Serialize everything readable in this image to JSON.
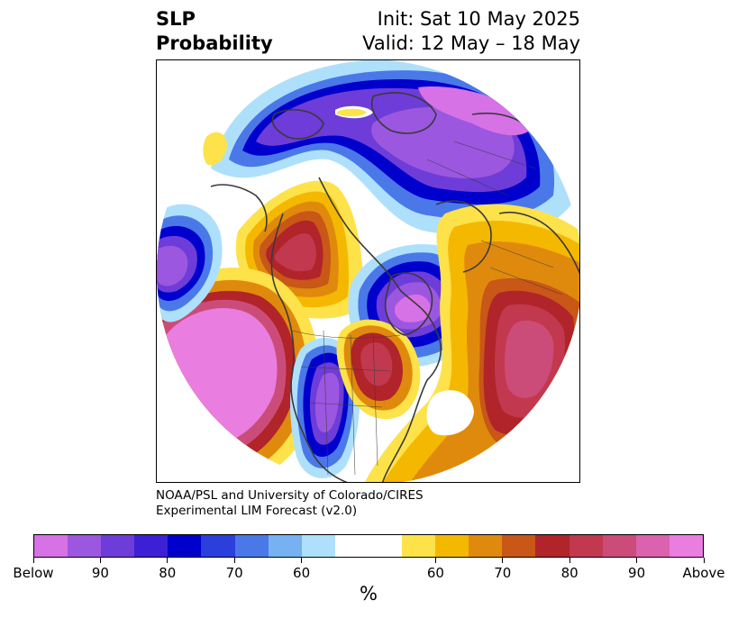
{
  "header": {
    "title_line1": "SLP",
    "title_line2": "Probability",
    "init_text": "Init: Sat 10 May 2025",
    "valid_text": "Valid: 12 May – 18 May"
  },
  "map": {
    "projection": "polar stereographic, Northern Hemisphere (Pacific / North America / Atlantic sector)",
    "variable": "SLP",
    "features": [
      {
        "label": "positive anomaly probability maximum",
        "region": "northeast Pacific",
        "category": "Above"
      },
      {
        "label": "positive anomaly probability maximum",
        "region": "western Canada / Pacific Northwest",
        "category": "80"
      },
      {
        "label": "positive anomaly probability maximum",
        "region": "Great Lakes",
        "category": "80"
      },
      {
        "label": "positive anomaly probability maximum",
        "region": "central North Atlantic",
        "category": "90"
      },
      {
        "label": "negative anomaly probability maximum",
        "region": "Arctic / Canadian Archipelago",
        "category": "90"
      },
      {
        "label": "negative anomaly probability maximum",
        "region": "Hudson Bay / Labrador Sea",
        "category": "90"
      },
      {
        "label": "negative anomaly probability maximum",
        "region": "central United States",
        "category": "90"
      },
      {
        "label": "negative anomaly probability maximum",
        "region": "Gulf of Alaska / Bering Sea",
        "category": "90"
      }
    ]
  },
  "credit": {
    "line1": "NOAA/PSL and University of Colorado/CIRES",
    "line2": "Experimental LIM Forecast (v2.0)"
  },
  "colorbar": {
    "unit_label": "%",
    "colors": [
      "#d771e6",
      "#9c57e0",
      "#6e3cd8",
      "#3d1fd6",
      "#0000cc",
      "#2a3fdb",
      "#4a78e8",
      "#76b2f2",
      "#aee0fb",
      "#ffffff",
      "#fde24a",
      "#f5b800",
      "#e08a0d",
      "#c85718",
      "#b0242a",
      "#c2384f",
      "#cc4c79",
      "#db62ad",
      "#e97de0"
    ],
    "tick_labels": [
      "Below",
      "90",
      "80",
      "70",
      "60",
      "60",
      "70",
      "80",
      "90",
      "Above"
    ]
  },
  "palette": {
    "land_outline": "#3a3a3a",
    "frame": "#000000"
  }
}
